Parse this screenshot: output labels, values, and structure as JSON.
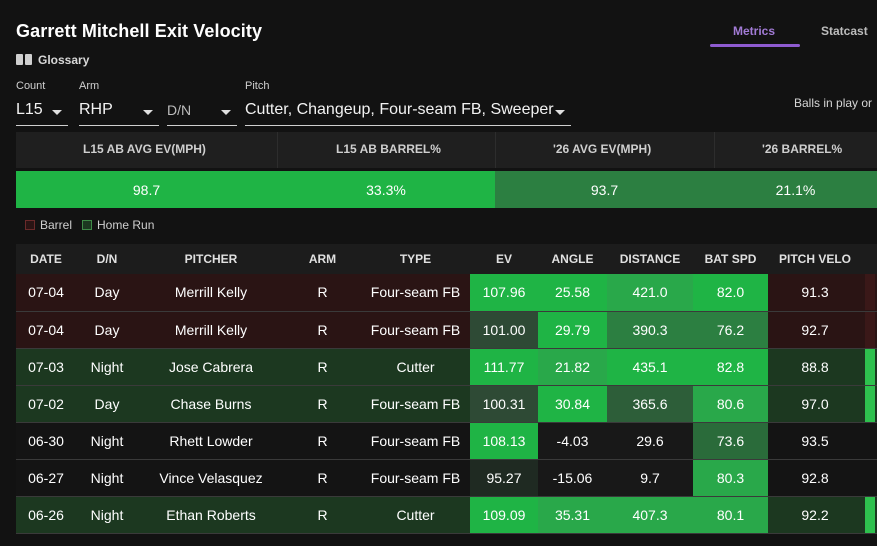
{
  "title": "Garrett Mitchell Exit Velocity",
  "tabs": {
    "metrics": "Metrics",
    "statcast": "Statcast"
  },
  "glossary": {
    "label": "Glossary",
    "icon": "book-icon"
  },
  "filters": {
    "count": {
      "label": "Count",
      "value": "L15"
    },
    "arm": {
      "label": "Arm",
      "value": "RHP"
    },
    "dn": {
      "value": "D/N"
    },
    "pitch": {
      "label": "Pitch",
      "value": "Cutter, Changeup, Four-seam FB, Sweeper"
    }
  },
  "balls_in_play": "Balls in play or",
  "summary": {
    "headers": [
      "L15 AB AVG EV(MPH)",
      "L15 AB BARREL%",
      "'26 AVG EV(MPH)",
      "'26 BARREL%"
    ],
    "values": [
      "98.7",
      "33.3%",
      "93.7",
      "21.1%"
    ]
  },
  "legend": {
    "barrel": "Barrel",
    "home_run": "Home Run"
  },
  "colors": {
    "bright_green": "#1fb445",
    "mid_green": "#29a84a",
    "dark_green": "#2c7f41",
    "barrel_row": "#2a1414",
    "home_run_row": "#1c3820",
    "accent_purple": "#8e5bd0"
  },
  "table": {
    "headers": [
      "DATE",
      "D/N",
      "PITCHER",
      "ARM",
      "TYPE",
      "EV",
      "ANGLE",
      "DISTANCE",
      "BAT SPD",
      "PITCH VELO"
    ],
    "rows": [
      {
        "date": "07-04",
        "dn": "Day",
        "pitcher": "Merrill Kelly",
        "arm": "R",
        "type": "Four-seam FB",
        "ev": "107.96",
        "angle": "25.58",
        "distance": "421.0",
        "bat_spd": "82.0",
        "pitch_velo": "91.3",
        "row_tint": "barrel",
        "edge": "barrel"
      },
      {
        "date": "07-04",
        "dn": "Day",
        "pitcher": "Merrill Kelly",
        "arm": "R",
        "type": "Four-seam FB",
        "ev": "101.00",
        "angle": "29.79",
        "distance": "390.3",
        "bat_spd": "76.2",
        "pitch_velo": "92.7",
        "row_tint": "barrel",
        "edge": "barrel"
      },
      {
        "date": "07-03",
        "dn": "Night",
        "pitcher": "Jose Cabrera",
        "arm": "R",
        "type": "Cutter",
        "ev": "111.77",
        "angle": "21.82",
        "distance": "435.1",
        "bat_spd": "82.8",
        "pitch_velo": "88.8",
        "row_tint": "home_run",
        "edge": "home_run"
      },
      {
        "date": "07-02",
        "dn": "Day",
        "pitcher": "Chase Burns",
        "arm": "R",
        "type": "Four-seam FB",
        "ev": "100.31",
        "angle": "30.84",
        "distance": "365.6",
        "bat_spd": "80.6",
        "pitch_velo": "97.0",
        "row_tint": "home_run",
        "edge": "home_run"
      },
      {
        "date": "06-30",
        "dn": "Night",
        "pitcher": "Rhett Lowder",
        "arm": "R",
        "type": "Four-seam FB",
        "ev": "108.13",
        "angle": "-4.03",
        "distance": "29.6",
        "bat_spd": "73.6",
        "pitch_velo": "93.5",
        "row_tint": "none",
        "edge": "none"
      },
      {
        "date": "06-27",
        "dn": "Night",
        "pitcher": "Vince Velasquez",
        "arm": "R",
        "type": "Four-seam FB",
        "ev": "95.27",
        "angle": "-15.06",
        "distance": "9.7",
        "bat_spd": "80.3",
        "pitch_velo": "92.8",
        "row_tint": "none",
        "edge": "none"
      },
      {
        "date": "06-26",
        "dn": "Night",
        "pitcher": "Ethan Roberts",
        "arm": "R",
        "type": "Cutter",
        "ev": "109.09",
        "angle": "35.31",
        "distance": "407.3",
        "bat_spd": "80.1",
        "pitch_velo": "92.2",
        "row_tint": "home_run",
        "edge": "home_run"
      }
    ]
  }
}
